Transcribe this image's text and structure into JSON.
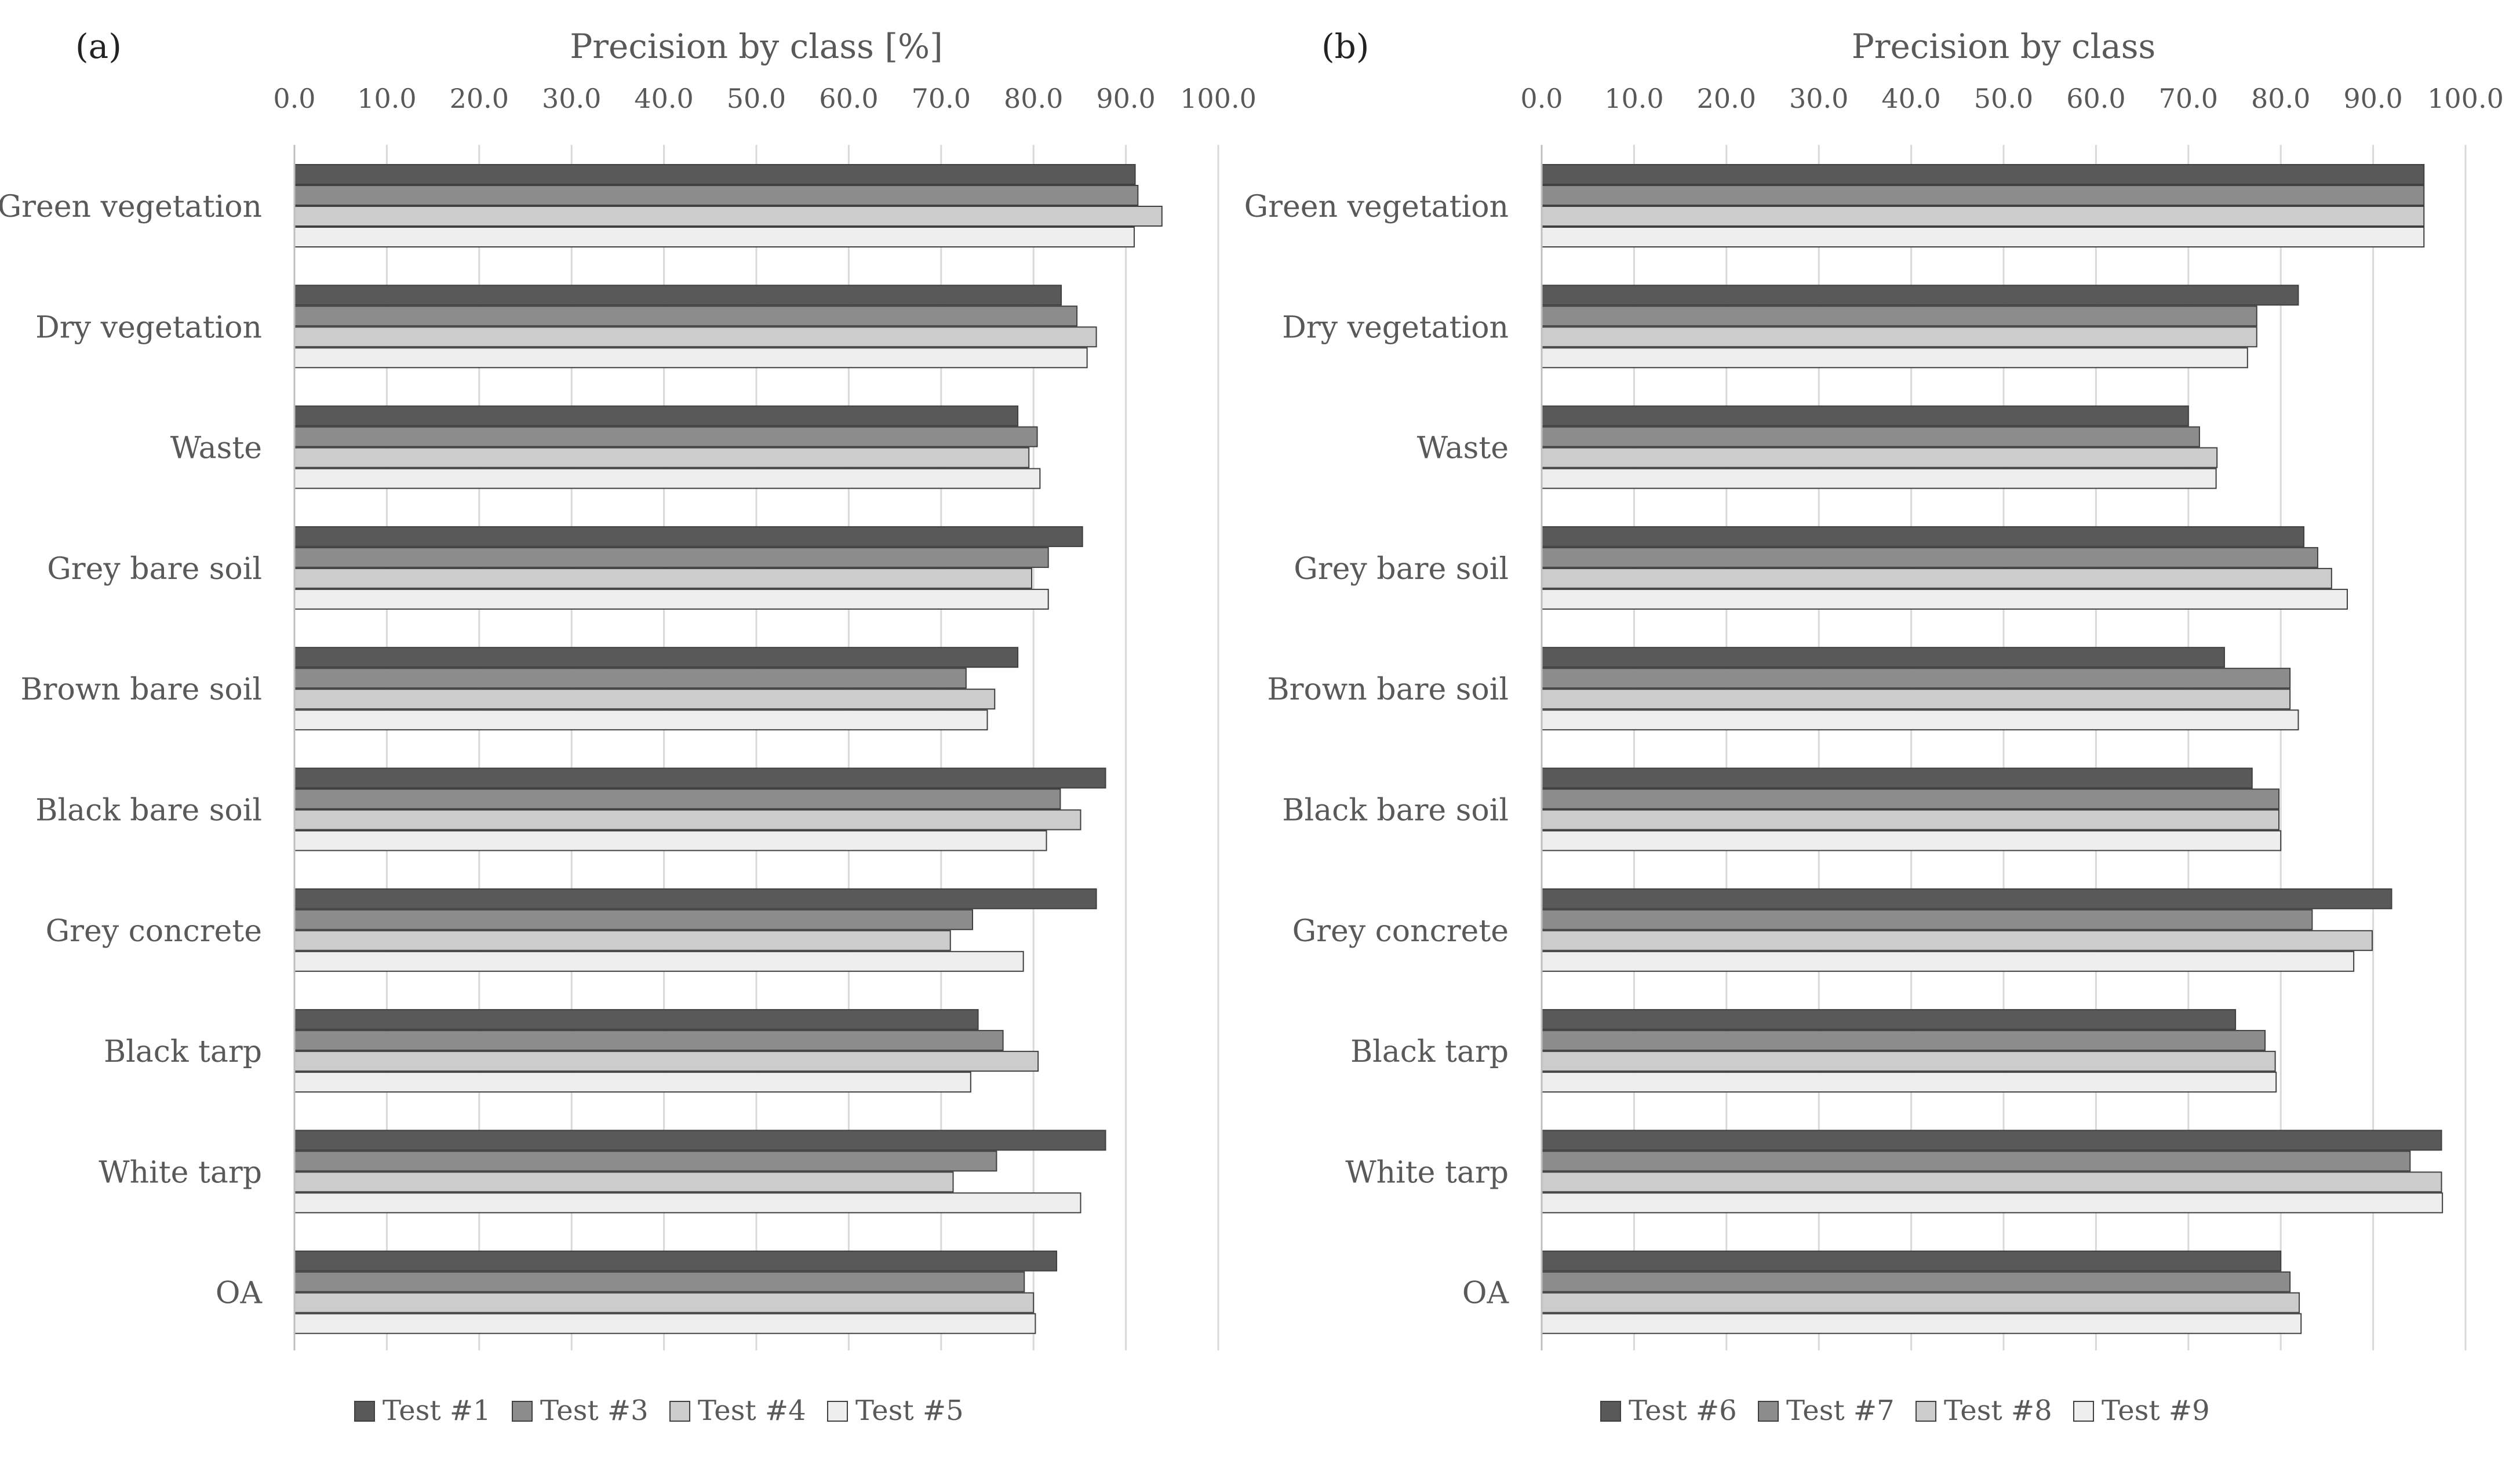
{
  "chart_data": [
    {
      "type": "bar",
      "orientation": "horizontal",
      "panel_label": "(a)",
      "title": "Precision by class [%]",
      "xlim": [
        0,
        100
      ],
      "x_ticks": [
        "0.0",
        "10.0",
        "20.0",
        "30.0",
        "40.0",
        "50.0",
        "60.0",
        "70.0",
        "80.0",
        "90.0",
        "100.0"
      ],
      "categories": [
        "Green vegetation",
        "Dry vegetation",
        "Waste",
        "Grey bare soil",
        "Brown bare soil",
        "Black bare soil",
        "Grey concrete",
        "Black tarp",
        "White tarp",
        "OA"
      ],
      "series": [
        {
          "name": "Test #1",
          "color": "#595959",
          "values": [
            91.0,
            83.0,
            78.3,
            85.3,
            78.3,
            87.8,
            86.8,
            74.0,
            87.8,
            82.5
          ]
        },
        {
          "name": "Test #3",
          "color": "#8c8c8c",
          "values": [
            91.3,
            84.7,
            80.4,
            81.6,
            72.7,
            82.9,
            73.4,
            76.7,
            76.0,
            79.0
          ]
        },
        {
          "name": "Test #4",
          "color": "#cccccc",
          "values": [
            93.9,
            86.8,
            79.5,
            79.8,
            75.8,
            85.1,
            71.0,
            80.5,
            71.3,
            80.0
          ]
        },
        {
          "name": "Test #5",
          "color": "#eeeeee",
          "values": [
            90.9,
            85.8,
            80.7,
            81.6,
            75.0,
            81.4,
            78.9,
            73.2,
            85.1,
            80.2
          ]
        }
      ]
    },
    {
      "type": "bar",
      "orientation": "horizontal",
      "panel_label": "(b)",
      "title": "Precision by class",
      "xlim": [
        0,
        100
      ],
      "x_ticks": [
        "0.0",
        "10.0",
        "20.0",
        "30.0",
        "40.0",
        "50.0",
        "60.0",
        "70.0",
        "80.0",
        "90.0",
        "100.0"
      ],
      "categories": [
        "Green vegetation",
        "Dry vegetation",
        "Waste",
        "Grey bare soil",
        "Brown bare soil",
        "Black bare soil",
        "Grey concrete",
        "Black tarp",
        "White tarp",
        "OA"
      ],
      "series": [
        {
          "name": "Test #6",
          "color": "#595959",
          "values": [
            95.5,
            81.9,
            70.0,
            82.5,
            73.9,
            76.9,
            92.0,
            75.1,
            97.4,
            80.0
          ]
        },
        {
          "name": "Test #7",
          "color": "#8c8c8c",
          "values": [
            95.5,
            77.4,
            71.2,
            84.0,
            81.0,
            79.8,
            83.4,
            78.3,
            94.0,
            81.0
          ]
        },
        {
          "name": "Test #8",
          "color": "#cccccc",
          "values": [
            95.5,
            77.4,
            73.1,
            85.5,
            81.0,
            79.8,
            89.9,
            79.4,
            97.4,
            82.0
          ]
        },
        {
          "name": "Test #9",
          "color": "#eeeeee",
          "values": [
            95.5,
            76.4,
            73.0,
            87.2,
            81.9,
            80.0,
            87.9,
            79.5,
            97.5,
            82.2
          ]
        }
      ]
    }
  ]
}
